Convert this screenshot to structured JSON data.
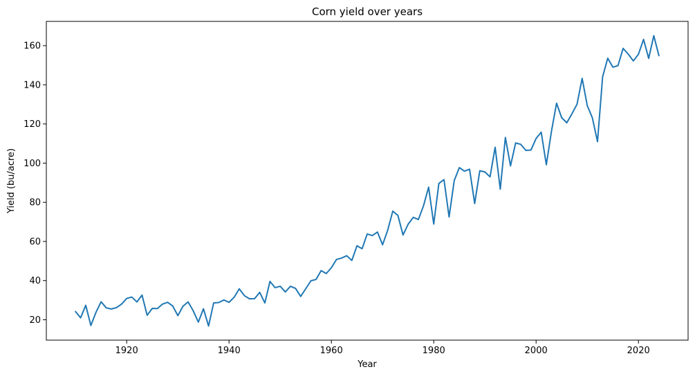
{
  "chart_data": {
    "type": "line",
    "title": "Corn yield over years",
    "xlabel": "Year",
    "ylabel": "Yield (bu/acre)",
    "xlim": [
      1904.3,
      2029.7
    ],
    "ylim": [
      9.6,
      172.4
    ],
    "grid": false,
    "x_ticks": [
      1920,
      1940,
      1960,
      1980,
      2000,
      2020
    ],
    "y_ticks": [
      20,
      40,
      60,
      80,
      100,
      120,
      140,
      160
    ],
    "x_tick_labels": [
      "1920",
      "1940",
      "1960",
      "1980",
      "2000",
      "2020"
    ],
    "y_tick_labels": [
      "20",
      "40",
      "60",
      "80",
      "100",
      "120",
      "140",
      "160"
    ],
    "color": "#1f77b4",
    "x": [
      1910,
      1911,
      1912,
      1913,
      1914,
      1915,
      1916,
      1917,
      1918,
      1919,
      1920,
      1921,
      1922,
      1923,
      1924,
      1925,
      1926,
      1927,
      1928,
      1929,
      1930,
      1931,
      1932,
      1933,
      1934,
      1935,
      1936,
      1937,
      1938,
      1939,
      1940,
      1941,
      1942,
      1943,
      1944,
      1945,
      1946,
      1947,
      1948,
      1949,
      1950,
      1951,
      1952,
      1953,
      1954,
      1955,
      1956,
      1957,
      1958,
      1959,
      1960,
      1961,
      1962,
      1963,
      1964,
      1965,
      1966,
      1967,
      1968,
      1969,
      1970,
      1971,
      1972,
      1973,
      1974,
      1975,
      1976,
      1977,
      1978,
      1979,
      1980,
      1981,
      1982,
      1983,
      1984,
      1985,
      1986,
      1987,
      1988,
      1989,
      1990,
      1991,
      1992,
      1993,
      1994,
      1995,
      1996,
      1997,
      1998,
      1999,
      2000,
      2001,
      2002,
      2003,
      2004,
      2005,
      2006,
      2007,
      2008,
      2009,
      2010,
      2011,
      2012,
      2013,
      2014,
      2015,
      2016,
      2017,
      2018,
      2019,
      2020,
      2021,
      2022,
      2023,
      2024
    ],
    "y": [
      24.2,
      21.0,
      27.4,
      17.1,
      23.8,
      29.2,
      26.1,
      25.5,
      26.2,
      28.0,
      30.9,
      31.6,
      29.1,
      32.6,
      22.3,
      25.8,
      25.7,
      28.0,
      28.9,
      27.0,
      22.1,
      26.9,
      29.1,
      24.6,
      18.8,
      25.6,
      16.8,
      28.6,
      28.8,
      30.1,
      28.9,
      31.5,
      35.8,
      32.3,
      30.7,
      30.8,
      34.0,
      28.6,
      39.6,
      36.4,
      37.1,
      34.2,
      37.1,
      36.0,
      31.9,
      35.9,
      39.9,
      40.6,
      45.1,
      43.6,
      46.6,
      50.8,
      51.5,
      52.7,
      50.3,
      57.8,
      56.3,
      63.8,
      63.0,
      64.8,
      58.3,
      65.7,
      75.5,
      73.3,
      63.3,
      68.8,
      72.3,
      71.2,
      78.2,
      87.7,
      68.9,
      89.6,
      91.6,
      72.5,
      91.1,
      97.7,
      95.9,
      96.9,
      79.4,
      96.1,
      95.5,
      93.0,
      108.1,
      86.7,
      113.1,
      98.6,
      110.3,
      109.6,
      106.5,
      106.7,
      112.6,
      115.8,
      99.2,
      116.2,
      130.6,
      123.2,
      120.6,
      125.2,
      130.1,
      143.3,
      129.4,
      123.1,
      111.0,
      144.1,
      153.6,
      149.0,
      149.8,
      158.6,
      155.7,
      152.2,
      155.6,
      163.2,
      153.5,
      165.1,
      154.9
    ]
  }
}
